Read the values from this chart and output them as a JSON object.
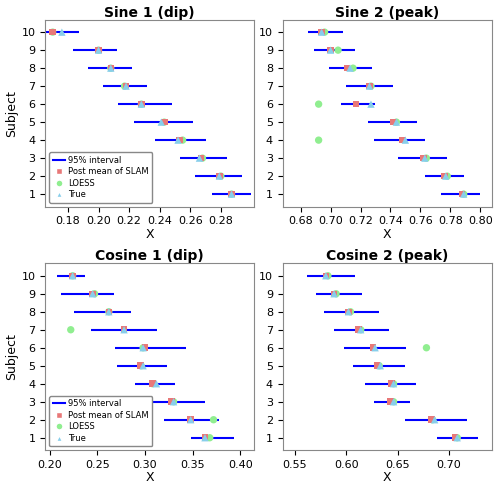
{
  "panels": [
    {
      "title": "Sine 1 (dip)",
      "xlim": [
        0.165,
        0.302
      ],
      "xticks": [
        0.18,
        0.2,
        0.22,
        0.24,
        0.26,
        0.28
      ],
      "xlabel": "X",
      "subjects": [
        10,
        9,
        8,
        7,
        6,
        5,
        4,
        3,
        2,
        1
      ],
      "ci_left": [
        0.16,
        0.183,
        0.193,
        0.203,
        0.213,
        0.223,
        0.237,
        0.253,
        0.263,
        0.274
      ],
      "ci_right": [
        0.187,
        0.212,
        0.222,
        0.232,
        0.248,
        0.262,
        0.27,
        0.284,
        0.294,
        0.3
      ],
      "slam": [
        0.17,
        0.2,
        0.208,
        0.218,
        0.228,
        0.243,
        0.253,
        0.267,
        0.279,
        0.287
      ],
      "loess": [
        0.17,
        0.2,
        0.208,
        0.217,
        0.228,
        0.243,
        0.255,
        0.268,
        0.28,
        0.287
      ],
      "true": [
        0.176,
        0.2,
        0.208,
        0.218,
        0.228,
        0.241,
        0.252,
        0.266,
        0.279,
        0.287
      ],
      "show_legend": true
    },
    {
      "title": "Sine 2 (peak)",
      "xlim": [
        0.668,
        0.808
      ],
      "xticks": [
        0.68,
        0.7,
        0.72,
        0.74,
        0.76,
        0.78,
        0.8
      ],
      "xlabel": "X",
      "subjects": [
        10,
        9,
        8,
        7,
        6,
        5,
        4,
        3,
        2,
        1
      ],
      "ci_left": [
        0.685,
        0.689,
        0.699,
        0.71,
        0.707,
        0.725,
        0.729,
        0.745,
        0.763,
        0.774
      ],
      "ci_right": [
        0.708,
        0.716,
        0.728,
        0.742,
        0.73,
        0.758,
        0.763,
        0.778,
        0.789,
        0.8
      ],
      "slam": [
        0.694,
        0.7,
        0.711,
        0.726,
        0.717,
        0.742,
        0.748,
        0.762,
        0.776,
        0.788
      ],
      "loess": [
        0.696,
        0.705,
        0.715,
        0.727,
        0.692,
        0.744,
        0.692,
        0.764,
        0.778,
        0.789
      ],
      "true": [
        0.694,
        0.7,
        0.713,
        0.726,
        0.727,
        0.744,
        0.75,
        0.763,
        0.777,
        0.789
      ],
      "show_legend": false
    },
    {
      "title": "Cosine 1 (dip)",
      "xlim": [
        0.195,
        0.415
      ],
      "xticks": [
        0.2,
        0.25,
        0.3,
        0.35,
        0.4
      ],
      "xlabel": "X",
      "subjects": [
        10,
        9,
        8,
        7,
        6,
        5,
        4,
        3,
        2,
        1
      ],
      "ci_left": [
        0.208,
        0.212,
        0.225,
        0.243,
        0.268,
        0.271,
        0.29,
        0.307,
        0.32,
        0.348
      ],
      "ci_right": [
        0.237,
        0.267,
        0.285,
        0.313,
        0.343,
        0.323,
        0.332,
        0.363,
        0.378,
        0.393
      ],
      "slam": [
        0.224,
        0.245,
        0.262,
        0.278,
        0.3,
        0.295,
        0.308,
        0.328,
        0.348,
        0.363
      ],
      "loess": [
        0.224,
        0.247,
        0.262,
        0.222,
        0.298,
        0.296,
        0.308,
        0.33,
        0.372,
        0.368
      ],
      "true": [
        0.224,
        0.245,
        0.262,
        0.278,
        0.298,
        0.298,
        0.312,
        0.33,
        0.348,
        0.363
      ],
      "show_legend": true
    },
    {
      "title": "Cosine 2 (peak)",
      "xlim": [
        0.538,
        0.742
      ],
      "xticks": [
        0.55,
        0.6,
        0.65,
        0.7
      ],
      "xlabel": "X",
      "subjects": [
        10,
        9,
        8,
        7,
        6,
        5,
        4,
        3,
        2,
        1
      ],
      "ci_left": [
        0.562,
        0.57,
        0.578,
        0.588,
        0.598,
        0.606,
        0.618,
        0.627,
        0.657,
        0.688
      ],
      "ci_right": [
        0.608,
        0.615,
        0.632,
        0.642,
        0.658,
        0.657,
        0.668,
        0.662,
        0.718,
        0.728
      ],
      "slam": [
        0.58,
        0.588,
        0.602,
        0.612,
        0.626,
        0.63,
        0.644,
        0.643,
        0.683,
        0.706
      ],
      "loess": [
        0.582,
        0.59,
        0.604,
        0.614,
        0.678,
        0.632,
        0.646,
        0.646,
        0.684,
        0.708
      ],
      "true": [
        0.58,
        0.588,
        0.602,
        0.614,
        0.628,
        0.633,
        0.646,
        0.646,
        0.686,
        0.708
      ],
      "show_legend": false
    }
  ],
  "slam_color": "#E87878",
  "loess_color": "#90EE90",
  "true_color": "#87CEEB",
  "ci_color": "blue",
  "bg_color": "#ffffff",
  "title_fontsize": 10,
  "label_fontsize": 9,
  "tick_fontsize": 8
}
